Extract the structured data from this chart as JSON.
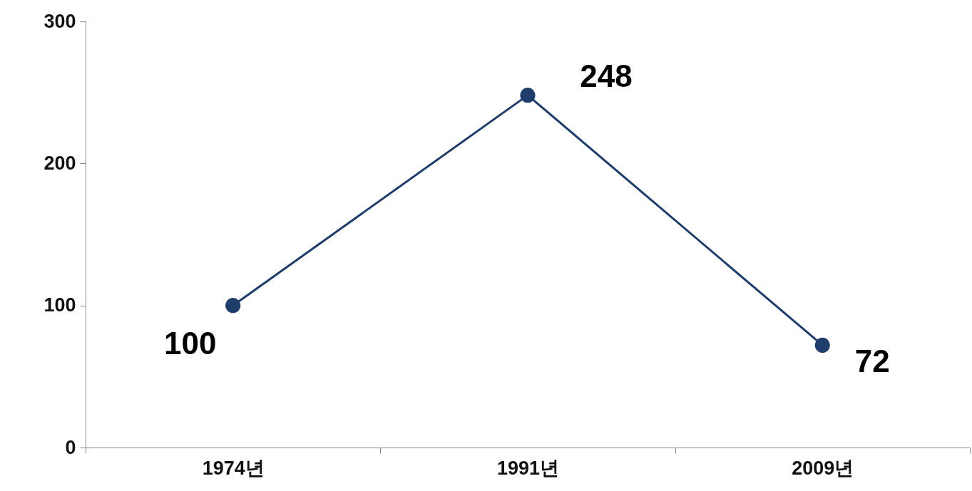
{
  "chart_data": {
    "type": "line",
    "categories": [
      "1974년",
      "1991년",
      "2009년"
    ],
    "series": [
      {
        "color": "#1f3d6b",
        "values": [
          100,
          248,
          72
        ]
      }
    ],
    "ylim": [
      0,
      300
    ],
    "yticks": [
      0,
      100,
      200,
      300
    ],
    "grid": false,
    "marker": "circle",
    "line_style": "solid",
    "data_labels": true
  }
}
